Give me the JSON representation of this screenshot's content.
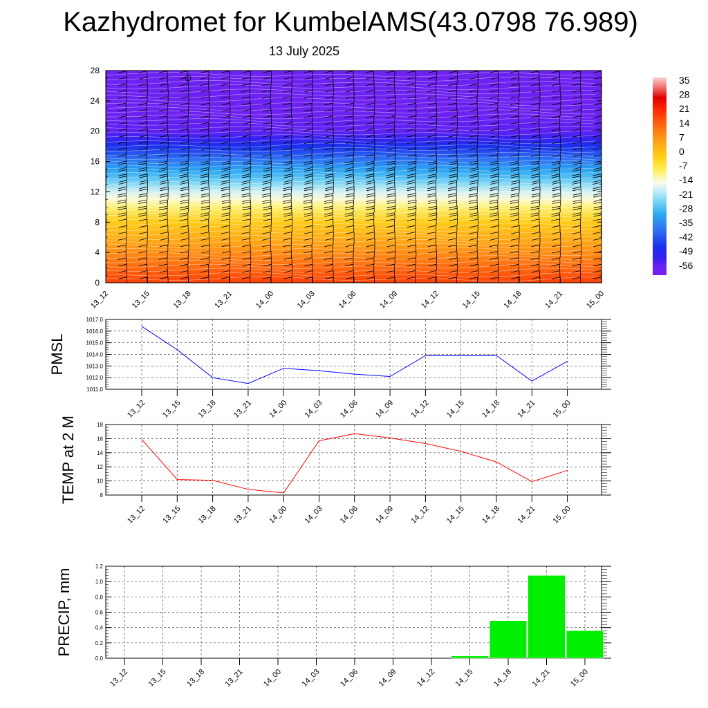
{
  "header": {
    "title": "Kazhydromet for KumbelAMS(43.0798 76.989)",
    "date": "13 July 2025"
  },
  "time_labels": [
    "13_12",
    "13_15",
    "13_18",
    "13_21",
    "14_00",
    "14_03",
    "14_06",
    "14_09",
    "14_12",
    "14_15",
    "14_18",
    "14_21",
    "15_00"
  ],
  "chart_data": [
    {
      "type": "heatmap",
      "title": "",
      "ylabel": "",
      "ylim": [
        0,
        28
      ],
      "yticks": [
        0,
        4,
        8,
        12,
        16,
        20,
        24,
        28
      ],
      "colorbar": {
        "labels": [
          "35",
          "28",
          "21",
          "14",
          "7",
          "0",
          "-7",
          "-14",
          "-21",
          "-28",
          "-35",
          "-42",
          "-49",
          "-56"
        ],
        "range": [
          -60,
          38
        ]
      },
      "temperature_profile": {
        "height_km": [
          0,
          2,
          4,
          6,
          8,
          10,
          11,
          12,
          13,
          14,
          15,
          16,
          17,
          18,
          19,
          20,
          21,
          22,
          24,
          26,
          28
        ],
        "temp_c": [
          19,
          14,
          9,
          4,
          -1,
          -9,
          -13,
          -17,
          -22,
          -27,
          -31,
          -36,
          -41,
          -46,
          -51,
          -55,
          -55,
          -56,
          -56,
          -56,
          -56
        ]
      },
      "wind_barbs": "present at each time step and height level",
      "colors": {
        "warm": "#ff3300",
        "mid": "#ffee66",
        "cold": "#2a2ae0",
        "top": "#7b22ee"
      }
    },
    {
      "type": "line",
      "ylabel": "PMSL",
      "ylim": [
        1011.0,
        1017.0
      ],
      "yticks": [
        "1011.0",
        "1012.0",
        "1013.0",
        "1014.0",
        "1015.0",
        "1016.0",
        "1017.0"
      ],
      "series": [
        {
          "values": [
            1016.4,
            1014.4,
            1012.0,
            1011.5,
            1012.8,
            1012.6,
            1012.3,
            1012.1,
            1013.9,
            1013.9,
            1013.9,
            1011.7,
            1013.4
          ],
          "color": "#0000ff"
        }
      ],
      "grid": true
    },
    {
      "type": "line",
      "ylabel": "TEMP at 2 M",
      "ylim": [
        8,
        18
      ],
      "yticks": [
        "8",
        "10",
        "12",
        "14",
        "16",
        "18"
      ],
      "series": [
        {
          "values": [
            15.9,
            10.2,
            10.1,
            8.8,
            8.3,
            15.7,
            16.7,
            16.1,
            15.3,
            14.2,
            12.7,
            9.9,
            11.5
          ],
          "color": "#ff0000"
        }
      ],
      "grid": true
    },
    {
      "type": "bar",
      "ylabel": "PRECIP, mm",
      "ylim": [
        0,
        1.2
      ],
      "yticks": [
        "0.0",
        "0.2",
        "0.4",
        "0.6",
        "0.8",
        "1.0",
        "1.2"
      ],
      "series": [
        {
          "values": [
            0,
            0,
            0,
            0,
            0,
            0,
            0,
            0,
            0,
            0.03,
            0.49,
            1.08,
            0.36
          ],
          "color": "#00ee00"
        }
      ],
      "grid": true
    }
  ]
}
